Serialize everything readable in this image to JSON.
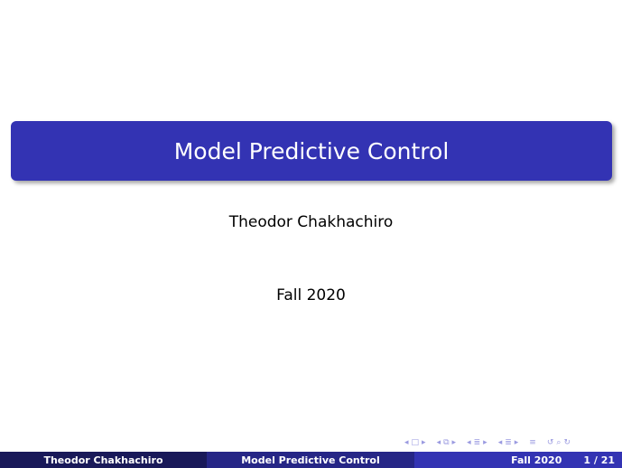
{
  "slide": {
    "title": "Model Predictive Control",
    "author": "Theodor Chakhachiro",
    "date": "Fall 2020"
  },
  "footer": {
    "author": "Theodor Chakhachiro",
    "title": "Model Predictive Control",
    "date": "Fall 2020",
    "page": "1 / 21"
  },
  "navigation": {
    "icons": [
      "arrow-left-icon",
      "frame-icon",
      "arrow-right-icon",
      "arrow-left-icon",
      "subsection-icon",
      "arrow-right-icon",
      "arrow-left-icon",
      "section-icon",
      "arrow-right-icon",
      "arrow-left-icon",
      "outline-icon",
      "arrow-right-icon",
      "align-icon",
      "undo-icon",
      "search-icon"
    ]
  },
  "colors": {
    "accent": "#3333b3",
    "footer_dark": "#191959",
    "footer_mid": "#262686"
  }
}
